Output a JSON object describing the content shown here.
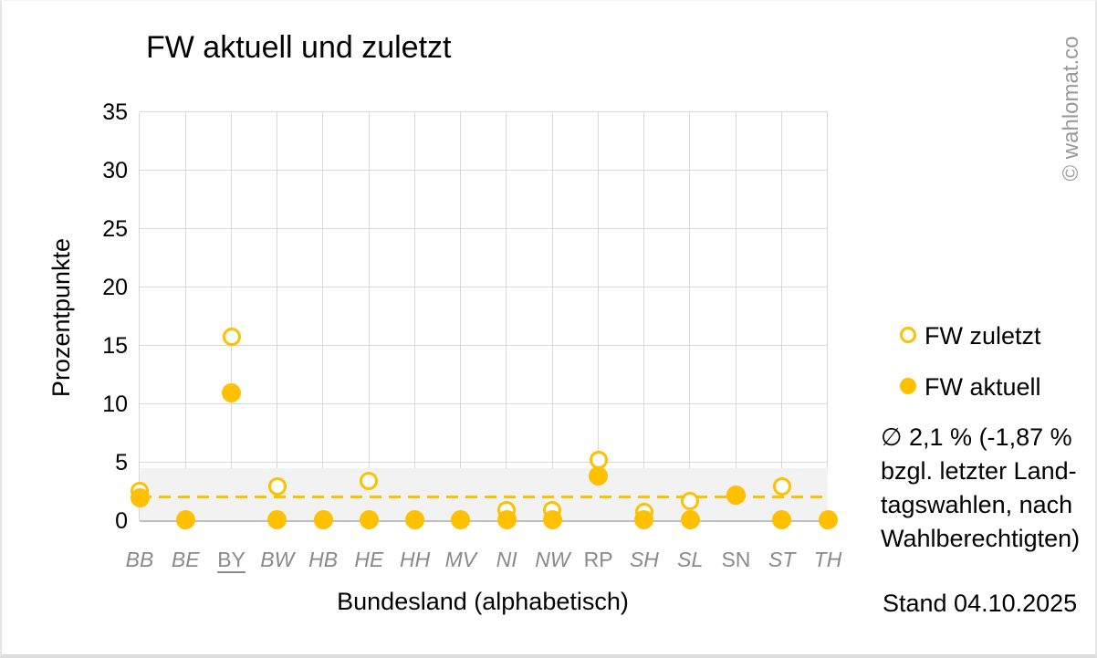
{
  "page": {
    "watermark": "© wahlomat.co",
    "stand": "Stand 04.10.2025"
  },
  "chart_data": {
    "type": "scatter",
    "title": "FW aktuell und zuletzt",
    "xlabel": "Bundesland (alphabetisch)",
    "ylabel": "Prozentpunkte",
    "ylim": [
      0,
      35
    ],
    "yticks": [
      0,
      5,
      10,
      15,
      20,
      25,
      30,
      35
    ],
    "grid": true,
    "legend_position": "right",
    "categories": [
      "BB",
      "BE",
      "BY",
      "BW",
      "HB",
      "HE",
      "HH",
      "MV",
      "NI",
      "NW",
      "RP",
      "SH",
      "SL",
      "SN",
      "ST",
      "TH"
    ],
    "category_styles": [
      "italic",
      "italic",
      "upright-underline",
      "italic",
      "italic",
      "italic",
      "italic",
      "italic",
      "italic",
      "italic",
      "upright",
      "italic",
      "italic",
      "upright",
      "italic",
      "italic"
    ],
    "series": [
      {
        "name": "FW zuletzt",
        "marker": "open-circle",
        "values": [
          2.6,
          0.1,
          15.8,
          3.0,
          0.1,
          3.4,
          0.1,
          0.1,
          0.9,
          0.9,
          5.2,
          0.8,
          1.7,
          2.2,
          3.0,
          0.1
        ]
      },
      {
        "name": "FW aktuell",
        "marker": "filled-circle",
        "values": [
          2.0,
          0.1,
          11.0,
          0.1,
          0.1,
          0.1,
          0.1,
          0.1,
          0.1,
          0.1,
          3.9,
          0.1,
          0.1,
          2.2,
          0.1,
          0.1
        ]
      }
    ],
    "mean_line": {
      "value": 2.1,
      "style": "dashed"
    },
    "band": {
      "from": 0,
      "to": 4.5
    },
    "annotation": {
      "lines": [
        "∅ 2,1 % (-1,87 %",
        "bzgl. letzter Land-",
        "tagswahlen, nach",
        "Wahlberechtigten)"
      ]
    },
    "colors": {
      "accent": "#FFC000",
      "grid": "#D9D9D9",
      "axis": "#BFBFBF",
      "band": "#F2F2F2",
      "category_label": "#8A8A8A",
      "watermark": "#9A9A9A"
    }
  }
}
